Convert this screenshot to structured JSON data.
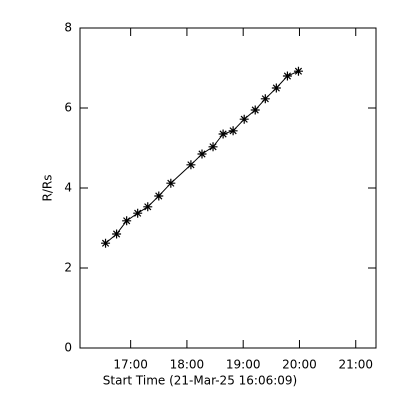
{
  "chart_data": {
    "type": "line",
    "x_label": "Start Time (21-Mar-25 16:06:09)",
    "y_label": "R/Rs",
    "x": [
      16.554,
      16.75,
      16.929,
      17.125,
      17.304,
      17.5,
      17.714,
      18.071,
      18.268,
      18.464,
      18.643,
      18.821,
      19.018,
      19.214,
      19.393,
      19.589,
      19.786,
      19.982
    ],
    "series": [
      {
        "color": "#000000",
        "marker": "asterisk",
        "values": [
          2.62,
          2.85,
          3.18,
          3.37,
          3.53,
          3.8,
          4.12,
          4.58,
          4.85,
          5.03,
          5.35,
          5.43,
          5.72,
          5.95,
          6.23,
          6.5,
          6.8,
          6.92
        ]
      }
    ],
    "xlim": [
      16.1,
      21.36
    ],
    "xticks": [
      {
        "value": 17,
        "label": "17:00"
      },
      {
        "value": 18,
        "label": "18:00"
      },
      {
        "value": 19,
        "label": "19:00"
      },
      {
        "value": 20,
        "label": "20:00"
      },
      {
        "value": 21,
        "label": "21:00"
      }
    ],
    "ylim": [
      0,
      8
    ],
    "yticks": [
      0,
      2,
      4,
      6,
      8
    ]
  }
}
